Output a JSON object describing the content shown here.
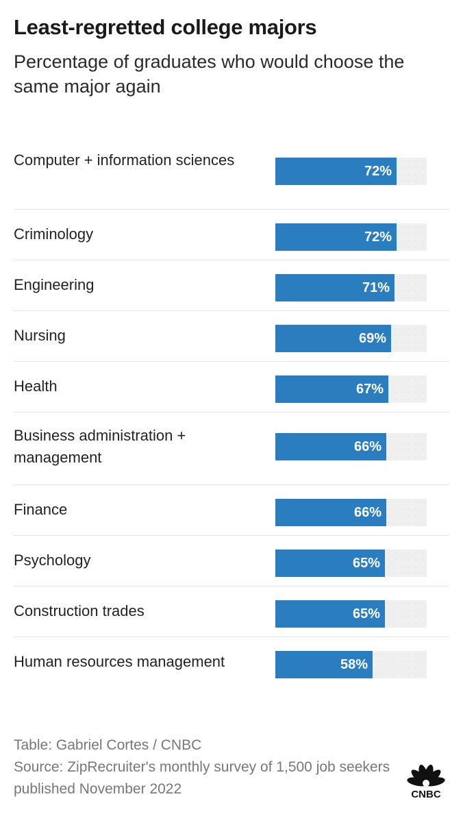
{
  "chart_data": {
    "type": "bar",
    "orientation": "horizontal",
    "title": "Least-regretted college majors",
    "subtitle": "Percentage of graduates who would choose the same major again",
    "categories": [
      "Computer + information sciences",
      "Criminology",
      "Engineering",
      "Nursing",
      "Health",
      "Business administration + management",
      "Finance",
      "Psychology",
      "Construction trades",
      "Human resources management"
    ],
    "values": [
      72,
      72,
      71,
      69,
      67,
      66,
      66,
      65,
      65,
      58
    ],
    "value_labels": [
      "72%",
      "72%",
      "71%",
      "69%",
      "67%",
      "66%",
      "66%",
      "65%",
      "65%",
      "58%"
    ],
    "xlim": [
      0,
      90
    ],
    "colors": {
      "bar": "#2a7dbf",
      "track": "#efefef",
      "value_text": "#ffffff"
    },
    "grid": false,
    "legend": "none"
  },
  "footer": {
    "credit": "Table: Gabriel Cortes / CNBC",
    "source": "Source: ZipRecruiter's monthly survey of 1,500 job seekers published November 2022"
  },
  "logo": {
    "text": "CNBC",
    "icon": "cnbc-peacock-icon"
  }
}
